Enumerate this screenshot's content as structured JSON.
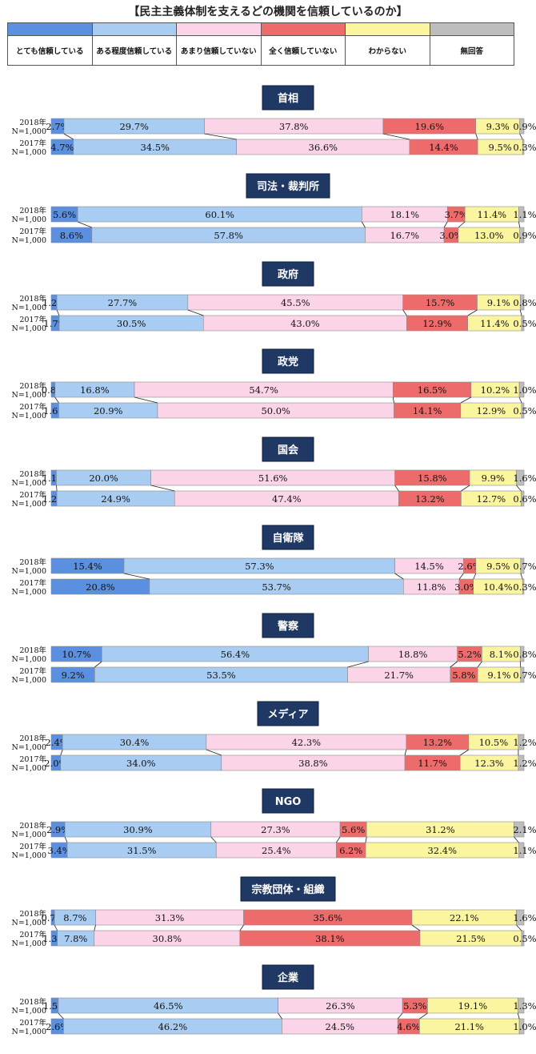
{
  "title": "【民主主義体制を支えるどの機関を信頼しているのか】",
  "colors": [
    "#5b8fe0",
    "#a9cdf2",
    "#fcd4e8",
    "#ee6b6b",
    "#fbf5a0",
    "#bdbdbd"
  ],
  "chart_data": {
    "type": "bar",
    "orientation": "horizontal",
    "stacked": true,
    "percent": true,
    "legend_position": "top",
    "categories": [
      "とても信頼している",
      "ある程度信頼している",
      "あまり信頼していない",
      "全く信頼していない",
      "わからない",
      "無回答"
    ],
    "row_labels": [
      {
        "year": "2018年",
        "n": "N=1,000"
      },
      {
        "year": "2017年",
        "n": "N=1,000"
      }
    ],
    "groups": [
      {
        "name": "首相",
        "rows": [
          [
            2.7,
            29.7,
            37.8,
            19.6,
            9.3,
            0.9
          ],
          [
            4.7,
            34.5,
            36.6,
            14.4,
            9.5,
            0.3
          ]
        ]
      },
      {
        "name": "司法・裁判所",
        "rows": [
          [
            5.6,
            60.1,
            18.1,
            3.7,
            11.4,
            1.1
          ],
          [
            8.6,
            57.8,
            16.7,
            3.0,
            13.0,
            0.9
          ]
        ]
      },
      {
        "name": "政府",
        "rows": [
          [
            1.2,
            27.7,
            45.5,
            15.7,
            9.1,
            0.8
          ],
          [
            1.7,
            30.5,
            43.0,
            12.9,
            11.4,
            0.5
          ]
        ]
      },
      {
        "name": "政党",
        "rows": [
          [
            0.8,
            16.8,
            54.7,
            16.5,
            10.2,
            1.0
          ],
          [
            1.6,
            20.9,
            50.0,
            14.1,
            12.9,
            0.5
          ]
        ]
      },
      {
        "name": "国会",
        "rows": [
          [
            1.1,
            20.0,
            51.6,
            15.8,
            9.9,
            1.6
          ],
          [
            1.2,
            24.9,
            47.4,
            13.2,
            12.7,
            0.6
          ]
        ]
      },
      {
        "name": "自衛隊",
        "rows": [
          [
            15.4,
            57.3,
            14.5,
            2.6,
            9.5,
            0.7
          ],
          [
            20.8,
            53.7,
            11.8,
            3.0,
            10.4,
            0.3
          ]
        ]
      },
      {
        "name": "警察",
        "rows": [
          [
            10.7,
            56.4,
            18.8,
            5.2,
            8.1,
            0.8
          ],
          [
            9.2,
            53.5,
            21.7,
            5.8,
            9.1,
            0.7
          ]
        ]
      },
      {
        "name": "メディア",
        "rows": [
          [
            2.4,
            30.4,
            42.3,
            13.2,
            10.5,
            1.2
          ],
          [
            2.0,
            34.0,
            38.8,
            11.7,
            12.3,
            1.2
          ]
        ]
      },
      {
        "name": "NGO",
        "rows": [
          [
            2.9,
            30.9,
            27.3,
            5.6,
            31.2,
            2.1
          ],
          [
            3.4,
            31.5,
            25.4,
            6.2,
            32.4,
            1.1
          ]
        ]
      },
      {
        "name": "宗教団体・組織",
        "rows": [
          [
            0.7,
            8.7,
            31.3,
            35.6,
            22.1,
            1.6
          ],
          [
            1.3,
            7.8,
            30.8,
            38.1,
            21.5,
            0.5
          ]
        ]
      },
      {
        "name": "企業",
        "rows": [
          [
            1.5,
            46.5,
            26.3,
            5.3,
            19.1,
            1.3
          ],
          [
            2.6,
            46.2,
            24.5,
            4.6,
            21.1,
            1.0
          ]
        ]
      }
    ]
  }
}
